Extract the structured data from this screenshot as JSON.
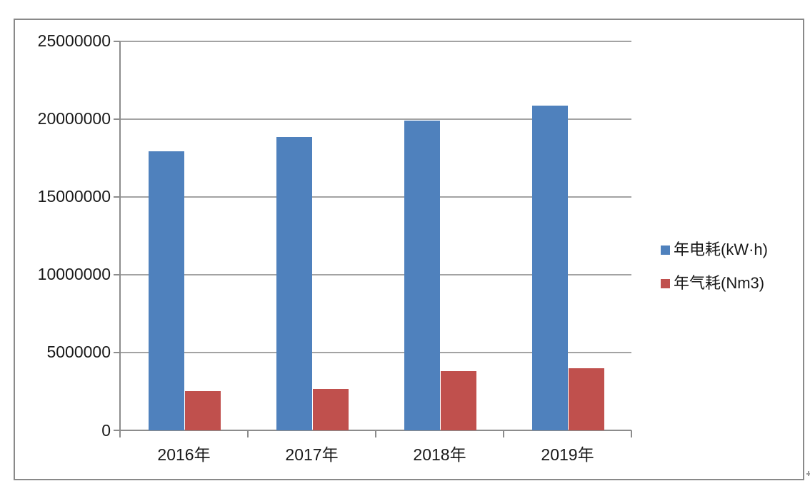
{
  "chart_data": {
    "type": "bar",
    "title": "",
    "categories": [
      "2016年",
      "2017年",
      "2018年",
      "2019年"
    ],
    "series": [
      {
        "name": "年电耗(kW·h)",
        "color": "#4F81BD",
        "values": [
          17900000,
          18850000,
          19900000,
          20850000
        ]
      },
      {
        "name": "年气耗(Nm3)",
        "color": "#C0504D",
        "values": [
          2500000,
          2650000,
          3800000,
          4000000
        ]
      }
    ],
    "xlabel": "",
    "ylabel": "",
    "ylim": [
      0,
      25000000
    ],
    "ytick_interval": 5000000,
    "ytick_labels": [
      "0",
      "5000000",
      "10000000",
      "15000000",
      "20000000",
      "25000000"
    ],
    "grid": true,
    "legend_position": "right",
    "plot_border_color": "#8c8c8c",
    "gridline_color": "#a3a3a3",
    "frame_border_color": "#898989",
    "background_color": "#ffffff",
    "text_color": "#1a1a1a"
  },
  "legend": {
    "items": [
      {
        "label": "年电耗(kW·h)",
        "color": "#4F81BD"
      },
      {
        "label": "年气耗(Nm3)",
        "color": "#C0504D"
      }
    ]
  }
}
